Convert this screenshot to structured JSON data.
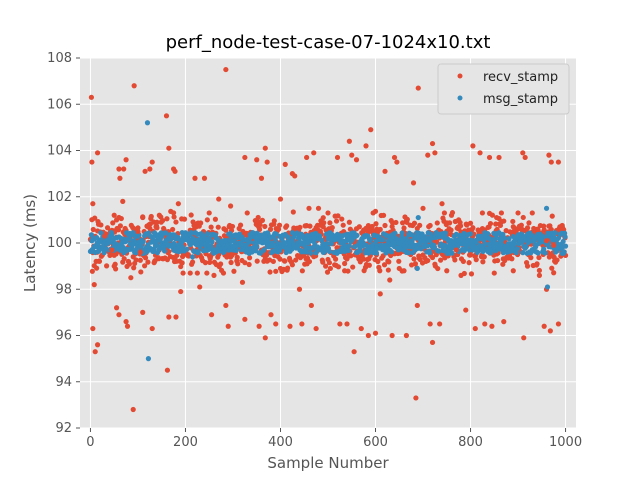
{
  "chart_data": {
    "type": "scatter",
    "title": "perf_node-test-case-07-1024x10.txt",
    "xlabel": "Sample Number",
    "ylabel": "Latency (ms)",
    "xlim": [
      -22,
      1022
    ],
    "ylim": [
      92,
      108
    ],
    "xticks": [
      0,
      200,
      400,
      600,
      800,
      1000
    ],
    "yticks": [
      92,
      94,
      96,
      98,
      100,
      102,
      104,
      106,
      108
    ],
    "grid": true,
    "legend_position": "top-right",
    "series": [
      {
        "name": "recv_stamp",
        "color": "#E24A33",
        "points": [
          [
            2,
            106.3
          ],
          [
            3,
            103.5
          ],
          [
            5,
            101.7
          ],
          [
            5,
            96.3
          ],
          [
            8,
            98.2
          ],
          [
            10,
            95.3
          ],
          [
            15,
            103.9
          ],
          [
            15,
            95.6
          ],
          [
            30,
            100.3
          ],
          [
            45,
            99.7
          ],
          [
            50,
            101.2
          ],
          [
            50,
            99.0
          ],
          [
            55,
            101.0
          ],
          [
            60,
            103.2
          ],
          [
            62,
            102.8
          ],
          [
            55,
            97.2
          ],
          [
            60,
            96.9
          ],
          [
            70,
            103.2
          ],
          [
            75,
            103.6
          ],
          [
            68,
            101.8
          ],
          [
            80,
            99.2
          ],
          [
            85,
            98.5
          ],
          [
            75,
            96.6
          ],
          [
            78,
            96.4
          ],
          [
            92,
            106.8
          ],
          [
            90,
            92.8
          ],
          [
            100,
            100.5
          ],
          [
            105,
            99.6
          ],
          [
            110,
            101.1
          ],
          [
            110,
            97.0
          ],
          [
            115,
            103.1
          ],
          [
            125,
            103.2
          ],
          [
            130,
            103.5
          ],
          [
            130,
            96.3
          ],
          [
            140,
            100.9
          ],
          [
            145,
            101.2
          ],
          [
            160,
            105.5
          ],
          [
            165,
            104.1
          ],
          [
            165,
            96.8
          ],
          [
            162,
            94.5
          ],
          [
            175,
            103.2
          ],
          [
            178,
            103.1
          ],
          [
            180,
            96.8
          ],
          [
            185,
            101.7
          ],
          [
            190,
            97.9
          ],
          [
            195,
            98.7
          ],
          [
            210,
            98.7
          ],
          [
            220,
            102.8
          ],
          [
            225,
            98.7
          ],
          [
            230,
            98.1
          ],
          [
            240,
            102.8
          ],
          [
            245,
            98.7
          ],
          [
            250,
            101.3
          ],
          [
            255,
            96.9
          ],
          [
            260,
            98.6
          ],
          [
            270,
            101.9
          ],
          [
            280,
            98.7
          ],
          [
            285,
            107.5
          ],
          [
            285,
            97.3
          ],
          [
            290,
            96.4
          ],
          [
            295,
            101.6
          ],
          [
            310,
            99.1
          ],
          [
            320,
            98.3
          ],
          [
            325,
            103.7
          ],
          [
            325,
            96.7
          ],
          [
            330,
            101.3
          ],
          [
            350,
            103.6
          ],
          [
            355,
            96.4
          ],
          [
            360,
            102.8
          ],
          [
            368,
            104.1
          ],
          [
            372,
            103.5
          ],
          [
            368,
            95.9
          ],
          [
            380,
            96.9
          ],
          [
            390,
            96.5
          ],
          [
            400,
            101.9
          ],
          [
            400,
            98.9
          ],
          [
            410,
            103.4
          ],
          [
            420,
            96.4
          ],
          [
            425,
            103.0
          ],
          [
            430,
            102.9
          ],
          [
            440,
            98.0
          ],
          [
            445,
            96.5
          ],
          [
            455,
            103.7
          ],
          [
            460,
            101.5
          ],
          [
            465,
            97.3
          ],
          [
            470,
            103.9
          ],
          [
            475,
            96.3
          ],
          [
            480,
            101.5
          ],
          [
            490,
            100.7
          ],
          [
            495,
            99.0
          ],
          [
            500,
            101.3
          ],
          [
            505,
            98.9
          ],
          [
            520,
            103.7
          ],
          [
            525,
            96.5
          ],
          [
            535,
            98.8
          ],
          [
            540,
            96.5
          ],
          [
            545,
            104.4
          ],
          [
            550,
            103.8
          ],
          [
            555,
            95.3
          ],
          [
            560,
            103.6
          ],
          [
            570,
            96.3
          ],
          [
            575,
            99.3
          ],
          [
            580,
            104.2
          ],
          [
            585,
            96.0
          ],
          [
            590,
            104.9
          ],
          [
            595,
            101.3
          ],
          [
            600,
            96.1
          ],
          [
            605,
            99.2
          ],
          [
            610,
            97.8
          ],
          [
            620,
            103.1
          ],
          [
            630,
            98.4
          ],
          [
            635,
            96.0
          ],
          [
            640,
            103.7
          ],
          [
            645,
            103.5
          ],
          [
            650,
            98.9
          ],
          [
            660,
            98.8
          ],
          [
            665,
            96.0
          ],
          [
            680,
            102.6
          ],
          [
            690,
            106.7
          ],
          [
            685,
            93.3
          ],
          [
            688,
            97.3
          ],
          [
            700,
            101.5
          ],
          [
            710,
            103.8
          ],
          [
            715,
            96.5
          ],
          [
            720,
            104.3
          ],
          [
            725,
            103.9
          ],
          [
            720,
            95.7
          ],
          [
            735,
            96.5
          ],
          [
            740,
            101.7
          ],
          [
            745,
            101.3
          ],
          [
            750,
            98.8
          ],
          [
            760,
            101.2
          ],
          [
            770,
            99.7
          ],
          [
            775,
            101.0
          ],
          [
            780,
            98.6
          ],
          [
            790,
            97.1
          ],
          [
            800,
            99.5
          ],
          [
            805,
            104.2
          ],
          [
            810,
            96.3
          ],
          [
            820,
            103.9
          ],
          [
            825,
            101.3
          ],
          [
            830,
            96.5
          ],
          [
            840,
            103.7
          ],
          [
            845,
            96.4
          ],
          [
            850,
            98.7
          ],
          [
            855,
            101.1
          ],
          [
            860,
            103.7
          ],
          [
            865,
            101.3
          ],
          [
            870,
            96.6
          ],
          [
            880,
            99.4
          ],
          [
            890,
            98.8
          ],
          [
            900,
            101.3
          ],
          [
            910,
            103.9
          ],
          [
            912,
            95.9
          ],
          [
            915,
            103.7
          ],
          [
            920,
            99.0
          ],
          [
            930,
            101.3
          ],
          [
            940,
            99.1
          ],
          [
            945,
            98.6
          ],
          [
            955,
            96.4
          ],
          [
            960,
            100.1
          ],
          [
            965,
            103.8
          ],
          [
            968,
            96.2
          ],
          [
            970,
            103.5
          ],
          [
            975,
            99.9
          ],
          [
            985,
            103.5
          ],
          [
            988,
            100.7
          ],
          [
            985,
            96.5
          ],
          [
            960,
            98.0
          ]
        ]
      },
      {
        "name": "msg_stamp",
        "color": "#348ABD",
        "points": [
          [
            120,
            105.2
          ],
          [
            122,
            95.0
          ],
          [
            215,
            99.4
          ],
          [
            460,
            100.3
          ],
          [
            470,
            100.2
          ],
          [
            690,
            101.1
          ],
          [
            688,
            98.9
          ],
          [
            960,
            101.5
          ],
          [
            962,
            98.1
          ],
          [
            640,
            100.0
          ],
          [
            300,
            99.7
          ],
          [
            820,
            100.2
          ]
        ]
      }
    ],
    "legend": [
      "recv_stamp",
      "msg_stamp"
    ]
  }
}
